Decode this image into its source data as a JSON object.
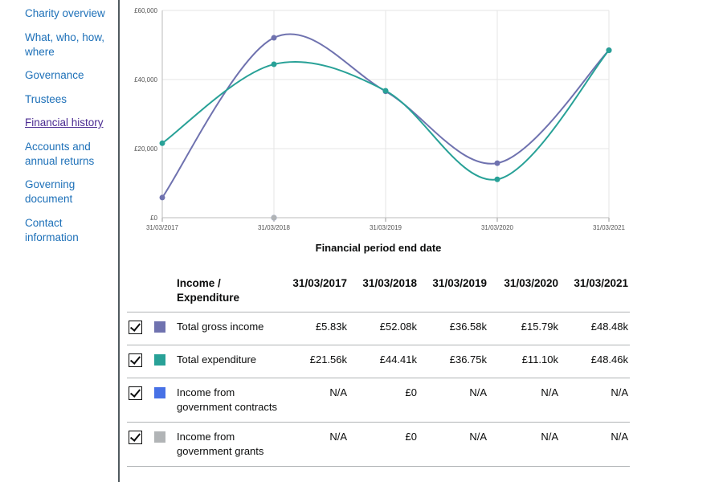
{
  "sidebar": {
    "items": [
      {
        "label": "Charity overview"
      },
      {
        "label": "What, who, how, where"
      },
      {
        "label": "Governance"
      },
      {
        "label": "Trustees"
      },
      {
        "label": "Financial history",
        "active": true
      },
      {
        "label": "Accounts and annual returns"
      },
      {
        "label": "Governing document"
      },
      {
        "label": "Contact information"
      }
    ]
  },
  "chart_data": {
    "type": "line",
    "title": "",
    "xlabel": "Financial period end date",
    "ylabel": "",
    "categories": [
      "31/03/2017",
      "31/03/2018",
      "31/03/2019",
      "31/03/2020",
      "31/03/2021"
    ],
    "y_ticks": [
      "£0",
      "£20,000",
      "£40,000",
      "£60,000"
    ],
    "ylim": [
      0,
      60000
    ],
    "grid": true,
    "legend": "table below chart",
    "series": [
      {
        "name": "Total gross income",
        "color": "#6f72af",
        "values": [
          5830,
          52080,
          36580,
          15790,
          48480
        ]
      },
      {
        "name": "Total expenditure",
        "color": "#28a197",
        "values": [
          21560,
          44410,
          36750,
          11100,
          48460
        ]
      },
      {
        "name": "Income from government contracts",
        "color": "#4771e6",
        "values": [
          null,
          0,
          null,
          null,
          null
        ]
      },
      {
        "name": "Income from government grants",
        "color": "#b1b4b6",
        "values": [
          null,
          0,
          null,
          null,
          null
        ]
      }
    ]
  },
  "table": {
    "header_label": "Income / Expenditure",
    "columns": [
      "31/03/2017",
      "31/03/2018",
      "31/03/2019",
      "31/03/2020",
      "31/03/2021"
    ],
    "rows": [
      {
        "label": "Total gross income",
        "color": "#6f72af",
        "checked": true,
        "values": [
          "£5.83k",
          "£52.08k",
          "£36.58k",
          "£15.79k",
          "£48.48k"
        ]
      },
      {
        "label": "Total expenditure",
        "color": "#28a197",
        "checked": true,
        "values": [
          "£21.56k",
          "£44.41k",
          "£36.75k",
          "£11.10k",
          "£48.46k"
        ]
      },
      {
        "label": "Income from government contracts",
        "color": "#4771e6",
        "checked": true,
        "values": [
          "N/A",
          "£0",
          "N/A",
          "N/A",
          "N/A"
        ]
      },
      {
        "label": "Income from government grants",
        "color": "#b1b4b6",
        "checked": true,
        "values": [
          "N/A",
          "£0",
          "N/A",
          "N/A",
          "N/A"
        ]
      }
    ]
  }
}
